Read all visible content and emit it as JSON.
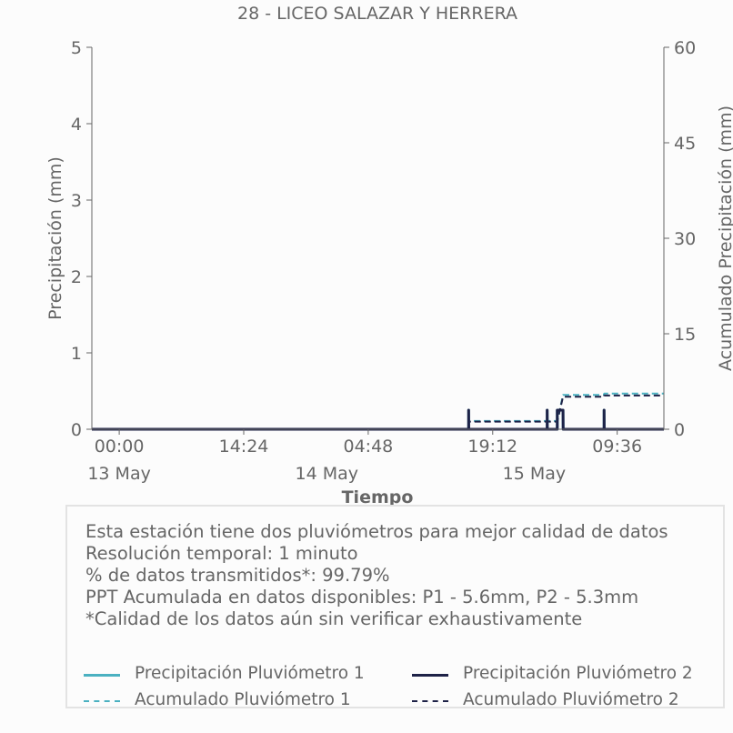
{
  "chart_data": {
    "type": "line",
    "title": "28 - LICEO SALAZAR Y HERRERA",
    "xlabel": "Tiempo",
    "ylabel": "Precipitación (mm)",
    "y2label": "Acumulado Precipitación (mm)",
    "ylim": [
      0,
      5
    ],
    "y2lim": [
      0,
      60
    ],
    "yticks": [
      "0",
      "1",
      "2",
      "3",
      "4",
      "5"
    ],
    "y2ticks": [
      "0",
      "15",
      "30",
      "45",
      "60"
    ],
    "xlim": [
      "2024-05-12 20:50",
      "2024-05-15 15:00"
    ],
    "xticks": [
      {
        "t": "2024-05-13 00:00",
        "time": "00:00",
        "date": "13 May"
      },
      {
        "t": "2024-05-13 14:24",
        "time": "14:24",
        "date": ""
      },
      {
        "t": "2024-05-14 04:48",
        "time": "04:48",
        "date": "14 May"
      },
      {
        "t": "2024-05-14 19:12",
        "time": "19:12",
        "date": ""
      },
      {
        "t": "2024-05-15 09:36",
        "time": "09:36",
        "date": "15 May"
      }
    ],
    "date_labels": [
      {
        "t": "2024-05-13 00:00",
        "label": "13 May"
      },
      {
        "t": "2024-05-14 00:00",
        "label": "14 May"
      },
      {
        "t": "2024-05-15 00:00",
        "label": "15 May"
      }
    ],
    "grid": false,
    "series": [
      {
        "name": "Precipitación Pluviómetro 1",
        "axis": "left",
        "style": "solid",
        "color": "#4bb1c1",
        "points": [
          [
            "2024-05-12 20:50",
            0
          ],
          [
            "2024-05-14 16:25",
            0
          ],
          [
            "2024-05-14 16:25",
            0.25
          ],
          [
            "2024-05-14 16:26",
            0
          ],
          [
            "2024-05-15 01:30",
            0
          ],
          [
            "2024-05-15 01:30",
            0.25
          ],
          [
            "2024-05-15 01:31",
            0
          ],
          [
            "2024-05-15 02:40",
            0
          ],
          [
            "2024-05-15 02:40",
            0.25
          ],
          [
            "2024-05-15 03:20",
            0.25
          ],
          [
            "2024-05-15 03:21",
            0
          ],
          [
            "2024-05-15 08:05",
            0
          ],
          [
            "2024-05-15 08:05",
            0.25
          ],
          [
            "2024-05-15 08:06",
            0
          ],
          [
            "2024-05-15 15:00",
            0
          ]
        ]
      },
      {
        "name": "Precipitación Pluviómetro 2",
        "axis": "left",
        "style": "solid",
        "color": "#1e2247",
        "points": [
          [
            "2024-05-12 20:50",
            0
          ],
          [
            "2024-05-14 16:25",
            0
          ],
          [
            "2024-05-14 16:25",
            0.25
          ],
          [
            "2024-05-14 16:26",
            0
          ],
          [
            "2024-05-15 01:30",
            0
          ],
          [
            "2024-05-15 01:30",
            0.25
          ],
          [
            "2024-05-15 01:31",
            0
          ],
          [
            "2024-05-15 02:40",
            0
          ],
          [
            "2024-05-15 02:40",
            0.25
          ],
          [
            "2024-05-15 03:20",
            0.25
          ],
          [
            "2024-05-15 03:21",
            0
          ],
          [
            "2024-05-15 08:05",
            0
          ],
          [
            "2024-05-15 08:05",
            0.25
          ],
          [
            "2024-05-15 08:06",
            0
          ],
          [
            "2024-05-15 15:00",
            0
          ]
        ]
      },
      {
        "name": "Acumulado Pluviómetro 1",
        "axis": "right",
        "style": "dashed",
        "color": "#4bb1c1",
        "points": [
          [
            "2024-05-12 20:50",
            0
          ],
          [
            "2024-05-14 16:25",
            0
          ],
          [
            "2024-05-14 16:26",
            1.3
          ],
          [
            "2024-05-15 02:40",
            1.3
          ],
          [
            "2024-05-15 03:20",
            5.4
          ],
          [
            "2024-05-15 08:05",
            5.4
          ],
          [
            "2024-05-15 08:06",
            5.6
          ],
          [
            "2024-05-15 15:00",
            5.6
          ]
        ]
      },
      {
        "name": "Acumulado Pluviómetro 2",
        "axis": "right",
        "style": "dashed",
        "color": "#1e2247",
        "points": [
          [
            "2024-05-12 20:50",
            0
          ],
          [
            "2024-05-14 16:25",
            0
          ],
          [
            "2024-05-14 16:26",
            1.2
          ],
          [
            "2024-05-15 02:40",
            1.2
          ],
          [
            "2024-05-15 03:20",
            5.1
          ],
          [
            "2024-05-15 08:05",
            5.1
          ],
          [
            "2024-05-15 08:06",
            5.3
          ],
          [
            "2024-05-15 15:00",
            5.3
          ]
        ]
      }
    ]
  },
  "info": {
    "lines": [
      "Esta estación tiene dos pluviómetros para mejor calidad de datos",
      "Resolución temporal: 1 minuto",
      "% de datos transmitidos*: 99.79%",
      "PPT Acumulada en datos disponibles: P1 - 5.6mm, P2 - 5.3mm",
      "*Calidad de los datos aún sin verificar exhaustivamente"
    ]
  },
  "legend": {
    "items": [
      {
        "label": "Precipitación Pluviómetro 1",
        "color": "#4bb1c1",
        "style": "solid"
      },
      {
        "label": "Precipitación Pluviómetro 2",
        "color": "#1e2247",
        "style": "solid"
      },
      {
        "label": "Acumulado Pluviómetro 1",
        "color": "#4bb1c1",
        "style": "dashed"
      },
      {
        "label": "Acumulado Pluviómetro 2",
        "color": "#1e2247",
        "style": "dashed"
      }
    ]
  },
  "colors": {
    "text": "#666666",
    "axis": "#666666",
    "box_border": "#e3e3e3"
  }
}
